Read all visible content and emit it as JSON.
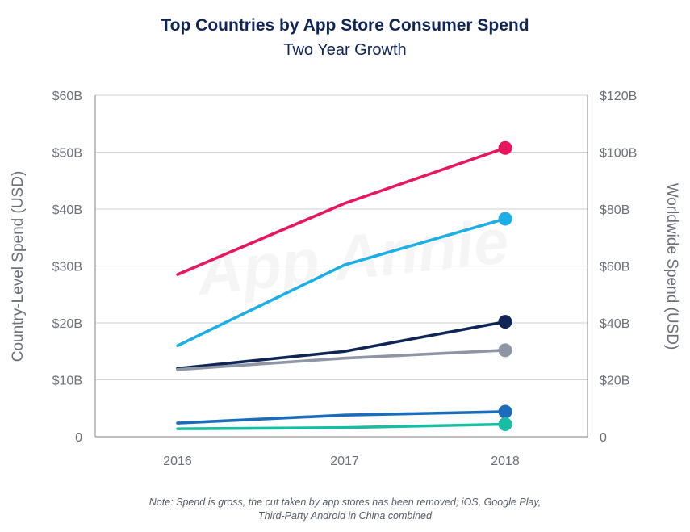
{
  "title": "Top Countries by App Store Consumer Spend",
  "subtitle": "Two Year Growth",
  "note_lines": [
    "Note: Spend is gross, the cut taken by app stores has been removed; iOS, Google Play,",
    "Third-Party Android in China combined"
  ],
  "watermark": "App Annie",
  "colors": {
    "magenta": "#e8175d",
    "sky": "#1eaee6",
    "navy": "#0f2556",
    "gray": "#8e96a6",
    "blue": "#1b6cbb",
    "teal": "#19bda2",
    "axis": "#999999",
    "text": "#6b6f78"
  },
  "chart_data": {
    "type": "line",
    "title": "Top Countries by App Store Consumer Spend",
    "subtitle": "Two Year Growth",
    "x": [
      "2016",
      "2017",
      "2018"
    ],
    "ylabel": "Country-Level Spend (USD)",
    "ylabel_right": "Worldwide Spend (USD)",
    "ylim": [
      0,
      60
    ],
    "ylim_right": [
      0,
      120
    ],
    "y_ticks": [
      "0",
      "$10B",
      "$20B",
      "$30B",
      "$40B",
      "$50B",
      "$60B"
    ],
    "y_ticks_right": [
      "0",
      "$20B",
      "$40B",
      "$60B",
      "$80B",
      "$100B",
      "$120B"
    ],
    "grid": "horizontal",
    "legend": "none",
    "series": [
      {
        "color": "#e8175d",
        "axis": "right",
        "values": [
          57,
          82,
          101.5
        ]
      },
      {
        "color": "#1eaee6",
        "axis": "left",
        "values": [
          16,
          30.2,
          38.3
        ]
      },
      {
        "color": "#0f2556",
        "axis": "left",
        "values": [
          12,
          15,
          20.2
        ]
      },
      {
        "color": "#8e96a6",
        "axis": "left",
        "values": [
          11.8,
          13.8,
          15.2
        ]
      },
      {
        "color": "#1b6cbb",
        "axis": "left",
        "values": [
          2.4,
          3.8,
          4.4
        ]
      },
      {
        "color": "#19bda2",
        "axis": "left",
        "values": [
          1.4,
          1.6,
          2.2
        ]
      }
    ]
  }
}
